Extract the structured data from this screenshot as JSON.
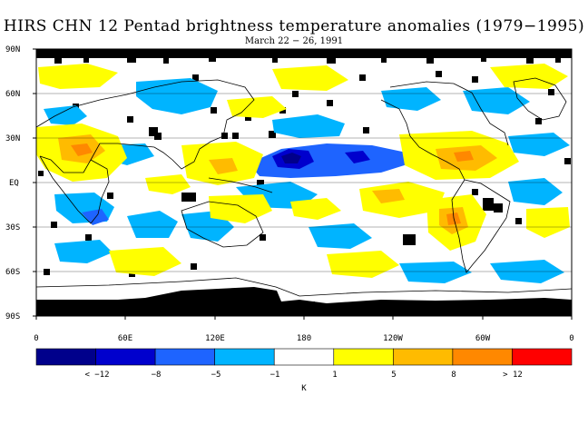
{
  "title": "HIRS CHN 12 Pentad brightness temperature anomalies (1979−1995)",
  "subtitle": "March 22 − 26, 1991",
  "map": {
    "lat_labels": [
      "90N",
      "60N",
      "30N",
      "EQ",
      "30S",
      "60S",
      "90S"
    ],
    "lon_labels": [
      "0",
      "60E",
      "120E",
      "180",
      "120W",
      "60W",
      "0"
    ],
    "colors": {
      "missing": "#000000",
      "coast": "#000000"
    },
    "features": [
      {
        "name": "strong-negative-anomaly",
        "lat": 15,
        "lon": 170,
        "level": "-8"
      },
      {
        "name": "negative-pacific-band",
        "lat": 12,
        "lon": 190,
        "level": "-5"
      },
      {
        "name": "positive-caribbean",
        "lat": 15,
        "lon": 275,
        "level": "5"
      },
      {
        "name": "positive-arabia",
        "lat": 18,
        "lon": 45,
        "level": "8"
      },
      {
        "name": "positive-south-america",
        "lat": -20,
        "lon": 305,
        "level": "8"
      },
      {
        "name": "positive-south-atlantic",
        "lat": -10,
        "lon": 345,
        "level": "5"
      }
    ]
  },
  "colorbar": {
    "unit": "K",
    "labels": [
      "< −12",
      "−8",
      "−5",
      "−1",
      "1",
      "5",
      "8",
      "> 12"
    ],
    "colors": [
      "#00008b",
      "#0000cd",
      "#1e64ff",
      "#00b4ff",
      "#ffffff",
      "#ffff00",
      "#ffbb00",
      "#ff8800",
      "#ff0000"
    ]
  }
}
